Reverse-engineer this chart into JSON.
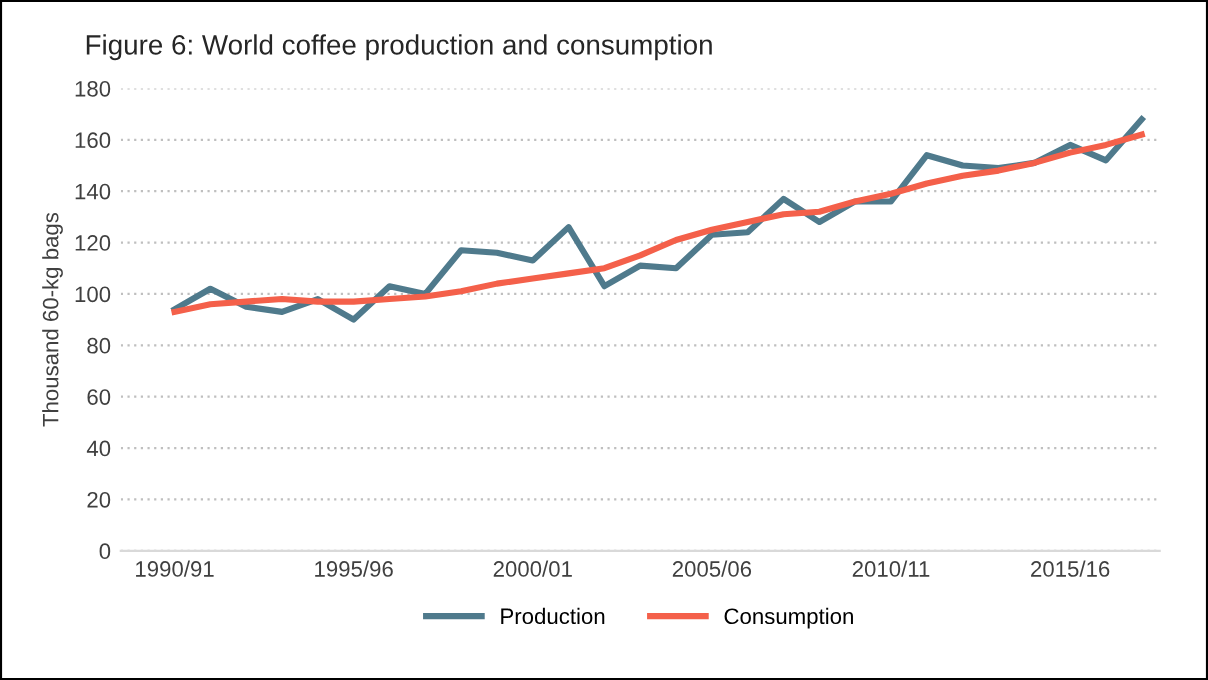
{
  "chart_data": {
    "type": "line",
    "title": "Figure 6: World coffee production and consumption",
    "ylabel": "Thousand 60-kg bags",
    "categories": [
      "1990/91",
      null,
      null,
      null,
      null,
      "1995/96",
      null,
      null,
      null,
      null,
      "2000/01",
      null,
      null,
      null,
      null,
      "2005/06",
      null,
      null,
      null,
      null,
      "2010/11",
      null,
      null,
      null,
      null,
      "2015/16",
      null,
      null
    ],
    "series": [
      {
        "name": "Production",
        "color": "#4f7a8c",
        "values": [
          94,
          102,
          95,
          93,
          98,
          90,
          103,
          100,
          117,
          116,
          113,
          126,
          103,
          111,
          110,
          123,
          124,
          137,
          128,
          136,
          136,
          154,
          150,
          149,
          151,
          158,
          152,
          168
        ]
      },
      {
        "name": "Consumption",
        "color": "#f4604a",
        "values": [
          93,
          96,
          97,
          98,
          97,
          97,
          98,
          99,
          101,
          104,
          106,
          108,
          110,
          115,
          121,
          125,
          128,
          131,
          132,
          136,
          139,
          143,
          146,
          148,
          151,
          155,
          158,
          162
        ]
      }
    ],
    "ylim": [
      0,
      180
    ],
    "yticks": [
      0,
      20,
      40,
      60,
      80,
      100,
      120,
      140,
      160,
      180
    ],
    "grid": "y",
    "legend": "bottom",
    "marker": "none",
    "line_style": "solid"
  }
}
